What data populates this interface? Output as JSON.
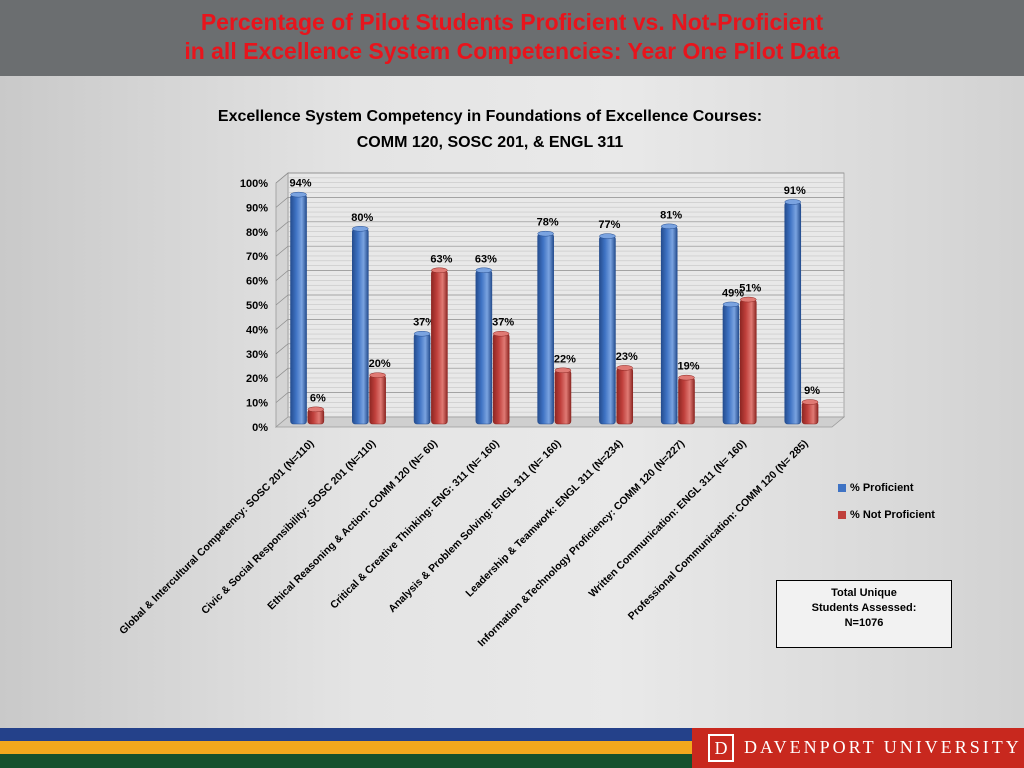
{
  "slide": {
    "title": "Percentage of Pilot Students Proficient vs. Not-Proficient\nin all Excellence System Competencies: Year One Pilot Data"
  },
  "chart_data": {
    "type": "bar",
    "title_line1": "Excellence System Competency in  Foundations of Excellence Courses:",
    "title_line2": "COMM 120, SOSC 201, & ENGL 311",
    "categories": [
      "Global & Intercultural Competency: SOSC 201 (N=110)",
      "Civic & Social Responsibility: SOSC 201 (N=110)",
      "Ethical Reasoning & Action: COMM 120 (N= 60)",
      "Critical & Creative Thinking: ENG: 311 (N= 160)",
      "Analysis & Problem Solving: ENGL 311 (N= 160)",
      "Leadership & Teamwork: ENGL 311 (N=234)",
      "Information &Technology Proficiency: COMM 120 (N=227)",
      "Written Communication: ENGL 311 (N= 160)",
      "Professional Communication: COMM 120 (N= 285)"
    ],
    "series": [
      {
        "name": "% Proficient",
        "color": "#3f73c4",
        "values": [
          94,
          80,
          37,
          63,
          78,
          77,
          81,
          49,
          91
        ],
        "labels": [
          "94%",
          "80%",
          "37%",
          "63%",
          "78%",
          "77%",
          "81%",
          "49%",
          "91%"
        ]
      },
      {
        "name": "% Not Proficient",
        "color": "#c0403c",
        "values": [
          6,
          20,
          63,
          37,
          22,
          23,
          19,
          51,
          9
        ],
        "labels": [
          "6%",
          "20%",
          "63%",
          "37%",
          "22%",
          "23%",
          "19%",
          "51%",
          "9%"
        ]
      }
    ],
    "ylim": [
      0,
      100
    ],
    "yticks": [
      "0%",
      "10%",
      "20%",
      "30%",
      "40%",
      "50%",
      "60%",
      "70%",
      "80%",
      "90%",
      "100%"
    ],
    "grid": true,
    "legend_position": "right"
  },
  "total_box": {
    "line1": "Total Unique",
    "line2": "Students  Assessed:",
    "line3": "N=1076"
  },
  "footer": {
    "logo_letter": "D",
    "university": "DAVENPORT UNIVERSITY",
    "colors": {
      "blue": "#24418a",
      "gold": "#f2a81d",
      "green": "#15512d",
      "red": "#c8281e"
    }
  }
}
